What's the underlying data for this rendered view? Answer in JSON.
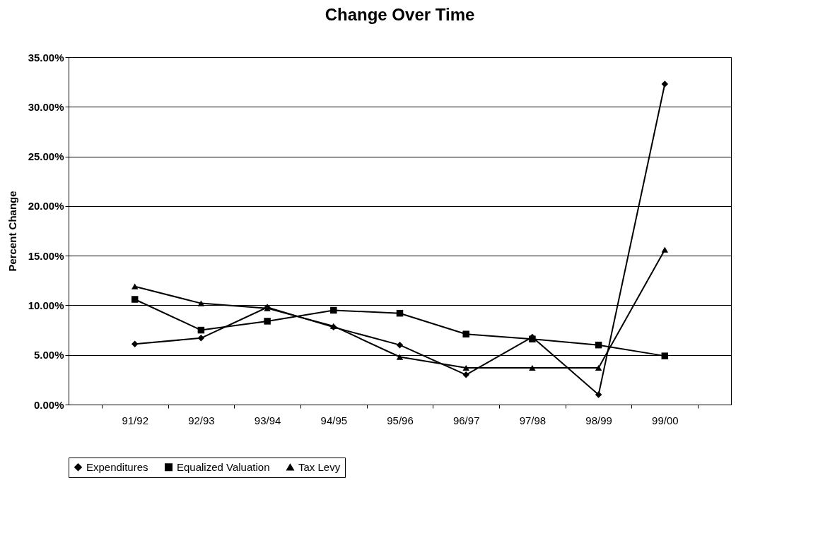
{
  "chart_data": {
    "type": "line",
    "title": "Change Over Time",
    "ylabel": "Percent Change",
    "categories": [
      "91/92",
      "92/93",
      "93/94",
      "94/95",
      "95/96",
      "96/97",
      "97/98",
      "98/99",
      "99/00"
    ],
    "series": [
      {
        "name": "Expenditures",
        "color": "#000000",
        "marker": "diamond",
        "values": [
          6.1,
          6.7,
          9.8,
          7.8,
          6.0,
          3.0,
          6.8,
          1.0,
          32.3
        ]
      },
      {
        "name": "Equalized Valuation",
        "color": "#000000",
        "marker": "square",
        "values": [
          10.6,
          7.5,
          8.4,
          9.5,
          9.2,
          7.1,
          6.6,
          6.0,
          4.9
        ]
      },
      {
        "name": "Tax Levy",
        "color": "#000000",
        "marker": "triangle",
        "values": [
          11.9,
          10.2,
          9.7,
          7.9,
          4.8,
          3.7,
          3.7,
          3.7,
          15.6
        ]
      }
    ],
    "ylim": [
      0,
      35
    ],
    "yticks": [
      {
        "value": 0,
        "label": "0.00%"
      },
      {
        "value": 5,
        "label": "5.00%"
      },
      {
        "value": 10,
        "label": "10.00%"
      },
      {
        "value": 15,
        "label": "15.00%"
      },
      {
        "value": 20,
        "label": "20.00%"
      },
      {
        "value": 25,
        "label": "25.00%"
      },
      {
        "value": 30,
        "label": "30.00%"
      },
      {
        "value": 35,
        "label": "35.00%"
      }
    ],
    "grid": "y",
    "legend": "bottom",
    "line_style": "solid"
  }
}
